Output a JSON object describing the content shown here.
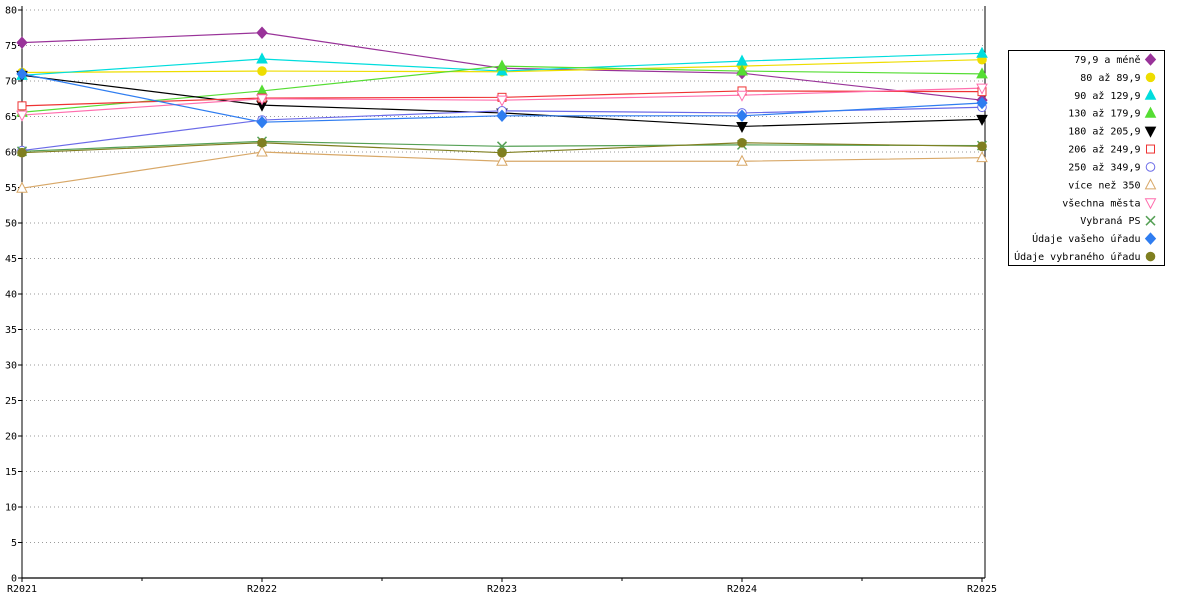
{
  "chart_data": {
    "type": "line",
    "title": "",
    "xlabel": "",
    "ylabel": "",
    "x_categories": [
      "R2021",
      "R2022",
      "R2023",
      "R2024",
      "R2025"
    ],
    "ylim": [
      0,
      80
    ],
    "y_tick_step": 5,
    "y_tick_labels": [
      "0",
      "5",
      "10",
      "15",
      "20",
      "25",
      "30",
      "35",
      "40",
      "45",
      "50",
      "55",
      "60",
      "65",
      "70",
      "75",
      "80"
    ],
    "grid": "horizontal-dotted",
    "grid_color": "#9a9a9a",
    "axis_color": "#000000",
    "legend_position": "right",
    "legend_border_color": "#000000",
    "legend_background": "#ffffff",
    "series": [
      {
        "name": "79,9 a méně",
        "color": "#993399",
        "marker": "diamond",
        "marker_fill": "solid",
        "values": [
          75.4,
          76.8,
          71.8,
          71.1,
          67.3
        ]
      },
      {
        "name": "80 až 89,9",
        "color": "#eedd00",
        "marker": "circle",
        "marker_fill": "solid",
        "values": [
          71.2,
          71.4,
          71.3,
          72.1,
          73.0
        ]
      },
      {
        "name": "90 až 129,9",
        "color": "#00dddd",
        "marker": "triangle",
        "marker_fill": "solid",
        "values": [
          70.8,
          73.1,
          71.4,
          72.8,
          73.9
        ]
      },
      {
        "name": "130 až 179,9",
        "color": "#55dd33",
        "marker": "triangle",
        "marker_fill": "solid",
        "values": [
          65.6,
          68.6,
          72.1,
          71.4,
          71.0
        ]
      },
      {
        "name": "180 až 205,9",
        "color": "#000000",
        "marker": "triangle-down",
        "marker_fill": "solid",
        "values": [
          70.8,
          66.6,
          65.5,
          63.6,
          64.6
        ]
      },
      {
        "name": "206 až 249,9",
        "color": "#ee3333",
        "marker": "square",
        "marker_fill": "open",
        "values": [
          66.5,
          67.6,
          67.7,
          68.6,
          68.5
        ]
      },
      {
        "name": "250 až 349,9",
        "color": "#6b6be8",
        "marker": "circle",
        "marker_fill": "open",
        "values": [
          60.2,
          64.5,
          65.8,
          65.5,
          66.3
        ]
      },
      {
        "name": "více než 350",
        "color": "#d8a868",
        "marker": "triangle",
        "marker_fill": "open",
        "values": [
          54.9,
          60.0,
          58.7,
          58.7,
          59.2
        ]
      },
      {
        "name": "všechna města",
        "color": "#ff6fae",
        "marker": "triangle-down",
        "marker_fill": "open",
        "values": [
          65.2,
          67.5,
          67.3,
          68.0,
          69.0
        ]
      },
      {
        "name": "Vybraná PS",
        "color": "#55a055",
        "marker": "x",
        "marker_fill": "open",
        "values": [
          60.1,
          61.5,
          60.8,
          61.0,
          60.9
        ]
      },
      {
        "name": "Údaje vašeho úřadu",
        "color": "#2f7df0",
        "marker": "diamond",
        "marker_fill": "solid",
        "values": [
          71.0,
          64.2,
          65.1,
          65.1,
          66.9
        ]
      },
      {
        "name": "Údaje vybraného úřadu",
        "color": "#7f7f20",
        "marker": "circle",
        "marker_fill": "solid",
        "values": [
          59.9,
          61.3,
          59.9,
          61.3,
          60.8
        ]
      }
    ]
  }
}
